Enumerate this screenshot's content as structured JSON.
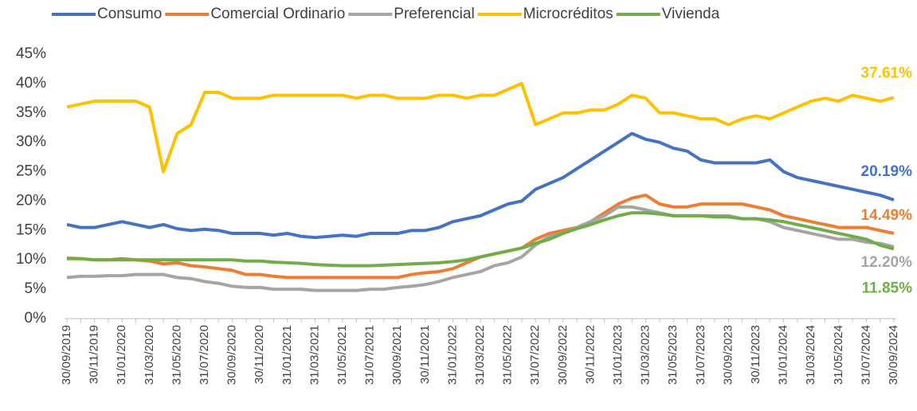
{
  "chart_data": {
    "type": "line",
    "categories": [
      "30/09/2019",
      null,
      "30/11/2019",
      null,
      "31/01/2020",
      null,
      "31/03/2020",
      null,
      "31/05/2020",
      null,
      "31/07/2020",
      null,
      "30/09/2020",
      null,
      "30/11/2020",
      null,
      "31/01/2021",
      null,
      "31/03/2021",
      null,
      "31/05/2021",
      null,
      "31/07/2021",
      null,
      "30/09/2021",
      null,
      "30/11/2021",
      null,
      "31/01/2022",
      null,
      "31/03/2022",
      null,
      "31/05/2022",
      null,
      "31/07/2022",
      null,
      "30/09/2022",
      null,
      "30/11/2022",
      null,
      "31/01/2023",
      null,
      "31/03/2023",
      null,
      "31/05/2023",
      null,
      "31/07/2023",
      null,
      "30/09/2023",
      null,
      "30/11/2023",
      null,
      "31/01/2024",
      null,
      "31/03/2024",
      null,
      "31/05/2024",
      null,
      "31/07/2024",
      null,
      "30/09/2024"
    ],
    "series": [
      {
        "name": "Consumo",
        "color": "#4472c4",
        "values": [
          16,
          15.5,
          15.5,
          16,
          16.5,
          16,
          15.5,
          16,
          15.3,
          15,
          15.2,
          15,
          14.5,
          14.5,
          14.5,
          14.2,
          14.5,
          14,
          13.8,
          14,
          14.2,
          14,
          14.5,
          14.5,
          14.5,
          15,
          15,
          15.5,
          16.5,
          17,
          17.5,
          18.5,
          19.5,
          20,
          22,
          23,
          24,
          25.5,
          27,
          28.5,
          30,
          31.5,
          30.5,
          30,
          29,
          28.5,
          27,
          26.5,
          26.5,
          26.5,
          26.5,
          27,
          25,
          24,
          23.5,
          23,
          22.5,
          22,
          21.5,
          21,
          20.19
        ],
        "value_labels": [
          null,
          null,
          null,
          null,
          null,
          null,
          null,
          null,
          null,
          null,
          null,
          null,
          null,
          null,
          null,
          null,
          null,
          null,
          null,
          null,
          null,
          null,
          null,
          null,
          null,
          null,
          null,
          null,
          null,
          null,
          null,
          null,
          null,
          null,
          null,
          null,
          null,
          null,
          null,
          null,
          null,
          null,
          null,
          null,
          null,
          null,
          null,
          null,
          null,
          null,
          null,
          null,
          null,
          null,
          null,
          null,
          null,
          null,
          null,
          null,
          "20.19%"
        ]
      },
      {
        "name": "Comercial Ordinario",
        "color": "#ed7d31",
        "values": [
          10.3,
          10.2,
          10,
          10,
          10.2,
          10,
          9.8,
          9.3,
          9.5,
          9,
          8.8,
          8.5,
          8.2,
          7.5,
          7.5,
          7.2,
          7,
          7,
          7,
          7,
          7,
          7,
          7,
          7,
          7,
          7.5,
          7.8,
          8,
          8.5,
          9.5,
          10.5,
          11,
          11.5,
          12,
          13.5,
          14.5,
          15,
          15.5,
          16.5,
          18,
          19.5,
          20.5,
          21,
          19.5,
          19,
          19,
          19.5,
          19.5,
          19.5,
          19.5,
          19,
          18.5,
          17.5,
          17,
          16.5,
          16,
          15.5,
          15.5,
          15.5,
          15,
          14.49
        ],
        "value_labels": [
          null,
          null,
          null,
          null,
          null,
          null,
          null,
          null,
          null,
          null,
          null,
          null,
          null,
          null,
          null,
          null,
          null,
          null,
          null,
          null,
          null,
          null,
          null,
          null,
          null,
          null,
          null,
          null,
          null,
          null,
          null,
          null,
          null,
          null,
          null,
          null,
          null,
          null,
          null,
          null,
          null,
          null,
          null,
          null,
          null,
          null,
          null,
          null,
          null,
          null,
          null,
          null,
          null,
          null,
          null,
          null,
          null,
          null,
          null,
          null,
          "14.49%"
        ]
      },
      {
        "name": "Preferencial",
        "color": "#a5a5a5",
        "values": [
          7,
          7.2,
          7.2,
          7.3,
          7.3,
          7.5,
          7.5,
          7.5,
          7,
          6.8,
          6.3,
          6,
          5.5,
          5.3,
          5.3,
          5,
          5,
          5,
          4.8,
          4.8,
          4.8,
          4.8,
          5,
          5,
          5.3,
          5.5,
          5.8,
          6.3,
          7,
          7.5,
          8,
          9,
          9.5,
          10.5,
          12.5,
          14,
          14.5,
          15.5,
          16.5,
          17.5,
          19,
          19,
          18.5,
          18,
          17.5,
          17.5,
          17.5,
          17.5,
          17.5,
          17,
          17,
          16.5,
          15.5,
          15,
          14.5,
          14,
          13.5,
          13.5,
          13,
          12.8,
          12.2
        ],
        "value_labels": [
          null,
          null,
          null,
          null,
          null,
          null,
          null,
          null,
          null,
          null,
          null,
          null,
          null,
          null,
          null,
          null,
          null,
          null,
          null,
          null,
          null,
          null,
          null,
          null,
          null,
          null,
          null,
          null,
          null,
          null,
          null,
          null,
          null,
          null,
          null,
          null,
          null,
          null,
          null,
          null,
          null,
          null,
          null,
          null,
          null,
          null,
          null,
          null,
          null,
          null,
          null,
          null,
          null,
          null,
          null,
          null,
          null,
          null,
          null,
          null,
          "12.20%"
        ]
      },
      {
        "name": "Microcréditos",
        "color": "#ffc000",
        "values": [
          36,
          36.5,
          37,
          37,
          37,
          37,
          36,
          25,
          31.5,
          33,
          38.5,
          38.5,
          37.5,
          37.5,
          37.5,
          38,
          38,
          38,
          38,
          38,
          38,
          37.5,
          38,
          38,
          37.5,
          37.5,
          37.5,
          38,
          38,
          37.5,
          38,
          38,
          39,
          40,
          33,
          34,
          35,
          35,
          35.5,
          35.5,
          36.5,
          38,
          37.5,
          35,
          35,
          34.5,
          34,
          34,
          33,
          34,
          34.5,
          34,
          35,
          36,
          37,
          37.5,
          37,
          38,
          37.5,
          37,
          37.61
        ],
        "value_labels": [
          null,
          null,
          null,
          null,
          null,
          null,
          null,
          null,
          null,
          null,
          null,
          null,
          null,
          null,
          null,
          null,
          null,
          null,
          null,
          null,
          null,
          null,
          null,
          null,
          null,
          null,
          null,
          null,
          null,
          null,
          null,
          null,
          null,
          null,
          null,
          null,
          null,
          null,
          null,
          null,
          null,
          null,
          null,
          null,
          null,
          null,
          null,
          null,
          null,
          null,
          null,
          null,
          null,
          null,
          null,
          null,
          null,
          null,
          null,
          null,
          "37.61%"
        ]
      },
      {
        "name": "Vivienda",
        "color": "#70ad47",
        "values": [
          10.2,
          10.2,
          10,
          10,
          10,
          10,
          10,
          10,
          10,
          10,
          10,
          10,
          10,
          9.8,
          9.8,
          9.6,
          9.5,
          9.4,
          9.2,
          9.1,
          9,
          9,
          9,
          9.1,
          9.2,
          9.3,
          9.4,
          9.5,
          9.7,
          10,
          10.5,
          11,
          11.5,
          12,
          12.8,
          13.5,
          14.5,
          15.3,
          16,
          16.8,
          17.5,
          18,
          18,
          17.8,
          17.5,
          17.5,
          17.5,
          17.3,
          17.3,
          17,
          17,
          16.8,
          16.5,
          16,
          15.5,
          15,
          14.5,
          14,
          13.5,
          12.5,
          11.85
        ],
        "value_labels": [
          null,
          null,
          null,
          null,
          null,
          null,
          null,
          null,
          null,
          null,
          null,
          null,
          null,
          null,
          null,
          null,
          null,
          null,
          null,
          null,
          null,
          null,
          null,
          null,
          null,
          null,
          null,
          null,
          null,
          null,
          null,
          null,
          null,
          null,
          null,
          null,
          null,
          null,
          null,
          null,
          null,
          null,
          null,
          null,
          null,
          null,
          null,
          null,
          null,
          null,
          null,
          null,
          null,
          null,
          null,
          null,
          null,
          null,
          null,
          null,
          "11.85%"
        ]
      }
    ],
    "ylim": [
      0,
      45
    ],
    "yticks": [
      {
        "value": 0,
        "label": "0%"
      },
      {
        "value": 5,
        "label": "5%"
      },
      {
        "value": 10,
        "label": "10%"
      },
      {
        "value": 15,
        "label": "15%"
      },
      {
        "value": 20,
        "label": "20%"
      },
      {
        "value": 25,
        "label": "25%"
      },
      {
        "value": 30,
        "label": "30%"
      },
      {
        "value": 35,
        "label": "35%"
      },
      {
        "value": 40,
        "label": "40%"
      },
      {
        "value": 45,
        "label": "45%"
      }
    ],
    "legend": "top",
    "grid": false
  }
}
